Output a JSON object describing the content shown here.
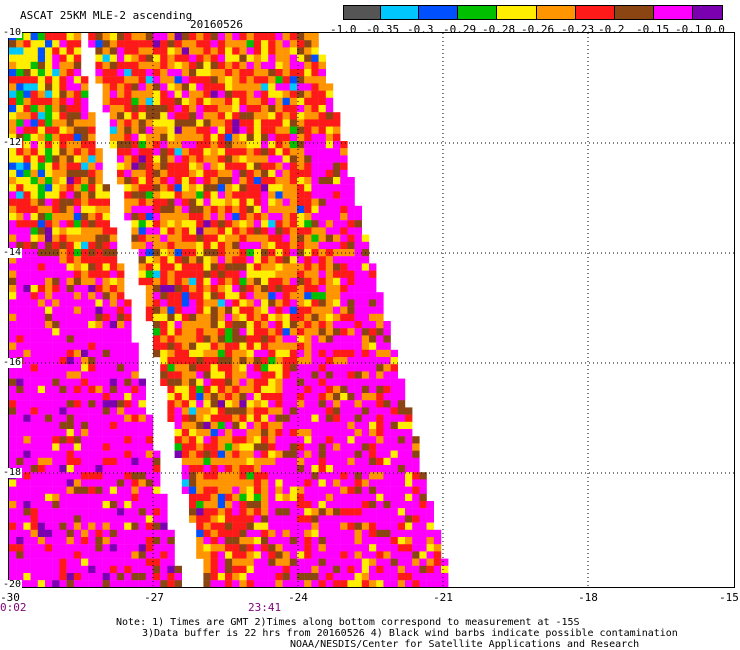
{
  "header": {
    "title": "ASCAT 25KM MLE-2 ascending",
    "date": "20160526"
  },
  "colorbar": {
    "colors": [
      "#555555",
      "#00c8ff",
      "#0050ff",
      "#00c000",
      "#ffee00",
      "#ff9500",
      "#ff1a1a",
      "#8b4513",
      "#ff00ff",
      "#7a00b0"
    ],
    "labels": [
      "-1.0",
      "-0.35",
      "-0.3",
      "-0.29",
      "-0.28",
      "-0.26",
      "-0.23",
      "-0.2",
      "-0.15",
      "-0.1",
      "0.0"
    ]
  },
  "map": {
    "lon_ticks": [
      "-30",
      "-27",
      "-24",
      "-21",
      "-18",
      "-15"
    ],
    "lat_ticks": [
      "-10",
      "-12",
      "-14",
      "-16",
      "-18",
      "-20"
    ],
    "times": [
      "0:02",
      "23:41"
    ],
    "grid": true
  },
  "notes": {
    "line1": "Note: 1) Times are GMT 2)Times along bottom correspond to measurement at -15S",
    "line2": "3)Data buffer is 22 hrs from 20160526 4) Black wind barbs indicate possible contamination",
    "line3": "NOAA/NESDIS/Center for Satellite Applications and Research"
  }
}
